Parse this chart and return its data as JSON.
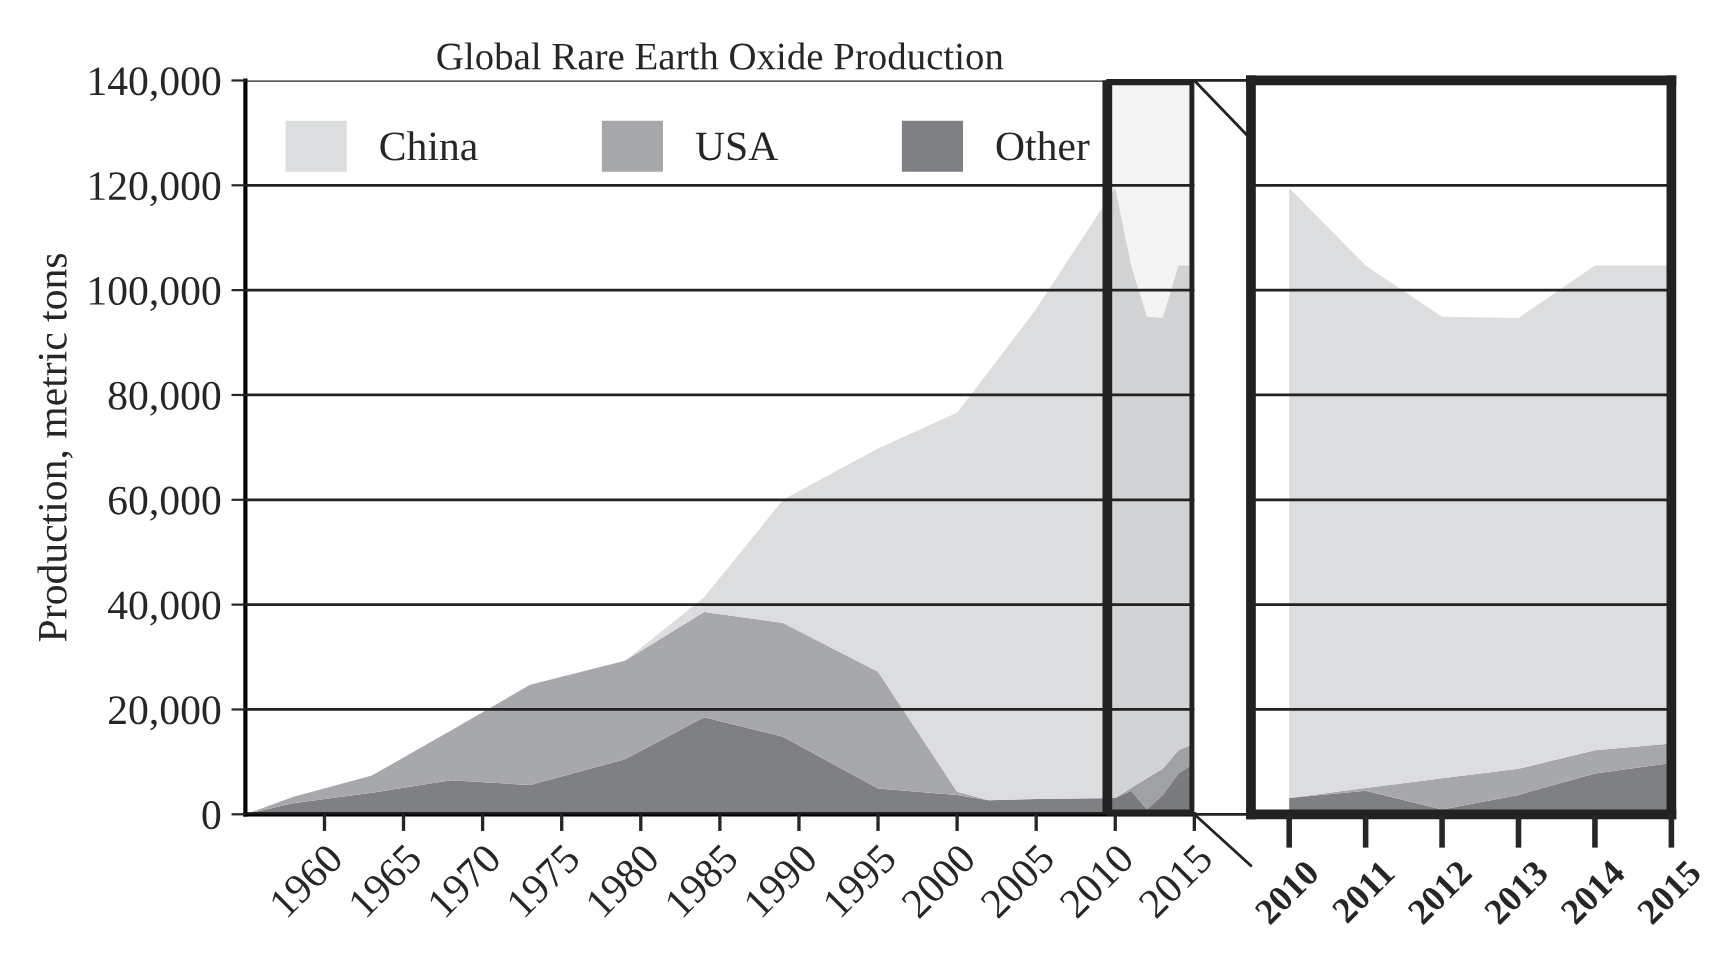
{
  "chart_data": [
    {
      "type": "area",
      "title": "Global Rare Earth Oxide Production",
      "ylabel": "Production, metric tons",
      "stacked": true,
      "x": [
        1955,
        1958,
        1963,
        1968,
        1973,
        1979,
        1984,
        1989,
        1995,
        2000,
        2002,
        2005,
        2010,
        2011,
        2012,
        2013,
        2014,
        2015
      ],
      "series": [
        {
          "name": "Other",
          "color": "#7f8084",
          "values": [
            0,
            2100,
            4100,
            6500,
            5600,
            10500,
            18500,
            14800,
            4900,
            3700,
            2700,
            2900,
            3100,
            4500,
            900,
            3700,
            7800,
            9800
          ]
        },
        {
          "name": "USA",
          "color": "#a7a8ab",
          "values": [
            0,
            1200,
            3300,
            9500,
            19100,
            18800,
            20100,
            21700,
            22300,
            600,
            0,
            0,
            0,
            500,
            6000,
            5000,
            4400,
            3700
          ]
        },
        {
          "name": "China",
          "color": "#dcdddf",
          "values": [
            0,
            0,
            0,
            0,
            0,
            0,
            2800,
            23500,
            42600,
            72300,
            81800,
            93500,
            116400,
            99700,
            88000,
            86000,
            92500,
            91200
          ]
        }
      ],
      "xlim": [
        1955,
        2015
      ],
      "xticks": [
        1960,
        1965,
        1970,
        1975,
        1980,
        1985,
        1990,
        1995,
        2000,
        2005,
        2010,
        2015
      ],
      "ylim": [
        0,
        140000
      ],
      "yticks": [
        {
          "value": 0,
          "label": "0"
        },
        {
          "value": 20000,
          "label": "20,000"
        },
        {
          "value": 40000,
          "label": "40,000"
        },
        {
          "value": 60000,
          "label": "60,000"
        },
        {
          "value": 80000,
          "label": "80,000"
        },
        {
          "value": 100000,
          "label": "100,000"
        },
        {
          "value": 120000,
          "label": "120,000"
        },
        {
          "value": 140000,
          "label": "140,000"
        }
      ],
      "grid": "y",
      "legend": "top left",
      "bands": [
        {
          "axis": "x",
          "from": 2009.5,
          "to": 2015,
          "color": "#222222"
        }
      ]
    },
    {
      "type": "area",
      "stacked": true,
      "x": [
        2010,
        2011,
        2012,
        2013,
        2014,
        2015
      ],
      "series": [
        {
          "color": "#7f8084",
          "values": [
            3100,
            4500,
            900,
            3700,
            7800,
            9800
          ]
        },
        {
          "color": "#a7a8ab",
          "values": [
            0,
            500,
            6000,
            5000,
            4400,
            3700
          ]
        },
        {
          "color": "#dcdddf",
          "values": [
            116400,
            99700,
            88000,
            86000,
            92500,
            91200
          ]
        }
      ],
      "xlim": [
        2009.5,
        2015
      ],
      "xticks": [
        2010,
        2011,
        2012,
        2013,
        2014,
        2015
      ],
      "ylim": [
        0,
        140000
      ],
      "yticks": [
        0,
        20000,
        40000,
        60000,
        80000,
        100000,
        120000,
        140000
      ],
      "grid": "y",
      "tick_labels": "x"
    }
  ]
}
